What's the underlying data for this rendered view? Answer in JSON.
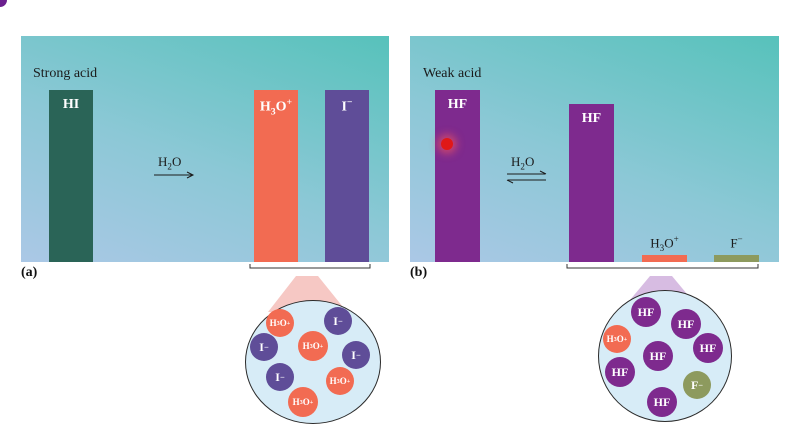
{
  "panel_a": {
    "title": "Strong acid",
    "tag": "(a)",
    "bars": {
      "hi": {
        "label": "HI",
        "value": 1.0,
        "color": "#2a6457"
      },
      "h3o": {
        "label_main": "H",
        "label_sub": "3",
        "label_mid": "O",
        "label_sup": "+",
        "value": 1.0,
        "color": "#f26b52"
      },
      "i": {
        "label_main": "I",
        "label_sup": "−",
        "value": 1.0,
        "color": "#5f4d98"
      }
    },
    "arrow": {
      "label_main": "H",
      "label_sub": "2",
      "label_end": "O"
    },
    "inset": [
      {
        "kind": "h3o",
        "main": "H",
        "sub": "3",
        "mid": "O",
        "sup": "+"
      },
      {
        "kind": "i",
        "main": "I",
        "sup": "−"
      },
      {
        "kind": "i",
        "main": "I",
        "sup": "−"
      },
      {
        "kind": "h3o",
        "main": "H",
        "sub": "3",
        "mid": "O",
        "sup": "+"
      },
      {
        "kind": "i",
        "main": "I",
        "sup": "−"
      },
      {
        "kind": "i",
        "main": "I",
        "sup": "−"
      },
      {
        "kind": "h3o",
        "main": "H",
        "sub": "3",
        "mid": "O",
        "sup": "+"
      },
      {
        "kind": "h3o",
        "main": "H",
        "sub": "3",
        "mid": "O",
        "sup": "+"
      }
    ]
  },
  "panel_b": {
    "title": "Weak acid",
    "tag": "(b)",
    "bars": {
      "hf_initial": {
        "label": "HF",
        "value": 1.0,
        "color": "#7e2a8e"
      },
      "hf_eq": {
        "label": "HF",
        "value": 0.92,
        "color": "#7e2a8e"
      },
      "h3o": {
        "label_main": "H",
        "label_sub": "3",
        "label_mid": "O",
        "label_sup": "+",
        "value": 0.04,
        "color": "#f26b52"
      },
      "f": {
        "label_main": "F",
        "label_sup": "−",
        "value": 0.04,
        "color": "#8d9a5e"
      }
    },
    "arrow": {
      "label_main": "H",
      "label_sub": "2",
      "label_end": "O"
    },
    "inset": [
      {
        "kind": "hf",
        "main": "HF"
      },
      {
        "kind": "hf",
        "main": "HF"
      },
      {
        "kind": "h3o",
        "main": "H",
        "sub": "3",
        "mid": "O",
        "sup": "+"
      },
      {
        "kind": "hf",
        "main": "HF"
      },
      {
        "kind": "hf",
        "main": "HF"
      },
      {
        "kind": "hf",
        "main": "HF"
      },
      {
        "kind": "f",
        "main": "F",
        "sup": "−"
      },
      {
        "kind": "hf",
        "main": "HF"
      }
    ]
  },
  "colors": {
    "h3o": "#f26b52",
    "i": "#5f4d98",
    "hf": "#7e2a8e",
    "f": "#8d9a5e",
    "hi": "#2a6457"
  }
}
